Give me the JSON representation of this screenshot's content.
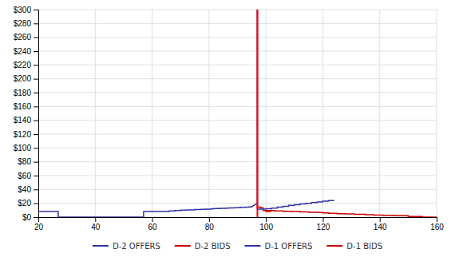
{
  "chart_data": {
    "type": "line",
    "xlim": [
      20,
      160
    ],
    "ylim": [
      0,
      300
    ],
    "xticks": [
      20,
      40,
      60,
      80,
      100,
      120,
      140,
      160
    ],
    "yticks": [
      {
        "value": 0,
        "label": "$0"
      },
      {
        "value": 20,
        "label": "$20"
      },
      {
        "value": 40,
        "label": "$40"
      },
      {
        "value": 60,
        "label": "$60"
      },
      {
        "value": 80,
        "label": "$80"
      },
      {
        "value": 100,
        "label": "$100"
      },
      {
        "value": 120,
        "label": "$120"
      },
      {
        "value": 140,
        "label": "$140"
      },
      {
        "value": 160,
        "label": "$160"
      },
      {
        "value": 180,
        "label": "$180"
      },
      {
        "value": 200,
        "label": "$200"
      },
      {
        "value": 220,
        "label": "$220"
      },
      {
        "value": 240,
        "label": "$240"
      },
      {
        "value": 260,
        "label": "$260"
      },
      {
        "value": 280,
        "label": "$280"
      },
      {
        "value": 300,
        "label": "$300"
      }
    ],
    "grid": true,
    "legend": "bottom",
    "series": [
      {
        "name": "D-2 OFFERS",
        "color": "#3333AA",
        "x": [
          20,
          27,
          27,
          57,
          57,
          66,
          66,
          68,
          68,
          70,
          70,
          72,
          72,
          75,
          75,
          77,
          77,
          79,
          79,
          81,
          81,
          82,
          82,
          84,
          84,
          86,
          86,
          87,
          87,
          89,
          89,
          91,
          91,
          93,
          93,
          94,
          94,
          95,
          95,
          97
        ],
        "values": [
          8,
          8,
          0,
          0,
          8,
          8,
          9,
          9,
          9.5,
          9.5,
          10,
          10,
          10.5,
          10.5,
          11,
          11,
          11.3,
          11.3,
          11.6,
          11.6,
          12,
          12,
          12.3,
          12.3,
          12.6,
          12.6,
          13,
          13,
          13.3,
          13.3,
          13.6,
          13.6,
          14,
          14,
          14.3,
          14.3,
          14.6,
          14.6,
          15,
          20
        ]
      },
      {
        "name": "D-2 BIDS",
        "color": "#CC0000",
        "x": [
          97,
          97,
          98,
          98,
          99,
          99,
          100,
          100,
          101,
          101,
          102
        ],
        "values": [
          300,
          14.5,
          14.5,
          13.5,
          13.5,
          9.5,
          9.5,
          8,
          8,
          8,
          8
        ]
      },
      {
        "name": "D-1 OFFERS",
        "color": "#3333AA",
        "x": [
          97,
          97,
          100,
          100,
          102,
          102,
          104,
          104,
          106,
          106,
          108,
          108,
          110,
          110,
          112,
          112,
          114,
          114,
          116,
          116,
          118,
          118,
          120,
          120,
          122,
          122,
          124
        ],
        "values": [
          300,
          11.5,
          11.5,
          12,
          12,
          13,
          13,
          14.5,
          14.5,
          15.5,
          15.5,
          17,
          17,
          18,
          18,
          19,
          19,
          20,
          20,
          21,
          21,
          22,
          22,
          23,
          23,
          24,
          24
        ]
      },
      {
        "name": "D-1 BIDS",
        "color": "#CC0000",
        "x": [
          100,
          103,
          103,
          106,
          106,
          109,
          109,
          112,
          112,
          115,
          115,
          118,
          118,
          120,
          120,
          122,
          122,
          125,
          125,
          128,
          128,
          131,
          131,
          135,
          135,
          138,
          138,
          141,
          141,
          145,
          145,
          150,
          150,
          155,
          155,
          160
        ],
        "values": [
          9.5,
          9.5,
          9,
          9,
          8.5,
          8.5,
          8,
          8,
          7.5,
          7.5,
          7,
          7,
          6.5,
          6.5,
          6,
          6,
          5.5,
          5.5,
          5,
          5,
          4.5,
          4.5,
          4,
          4,
          3.5,
          3.5,
          3,
          3,
          2.5,
          2.5,
          2,
          2,
          1,
          1,
          0,
          0
        ]
      }
    ],
    "vline": {
      "x": 97,
      "y": [
        0,
        300
      ],
      "color": "red"
    }
  }
}
